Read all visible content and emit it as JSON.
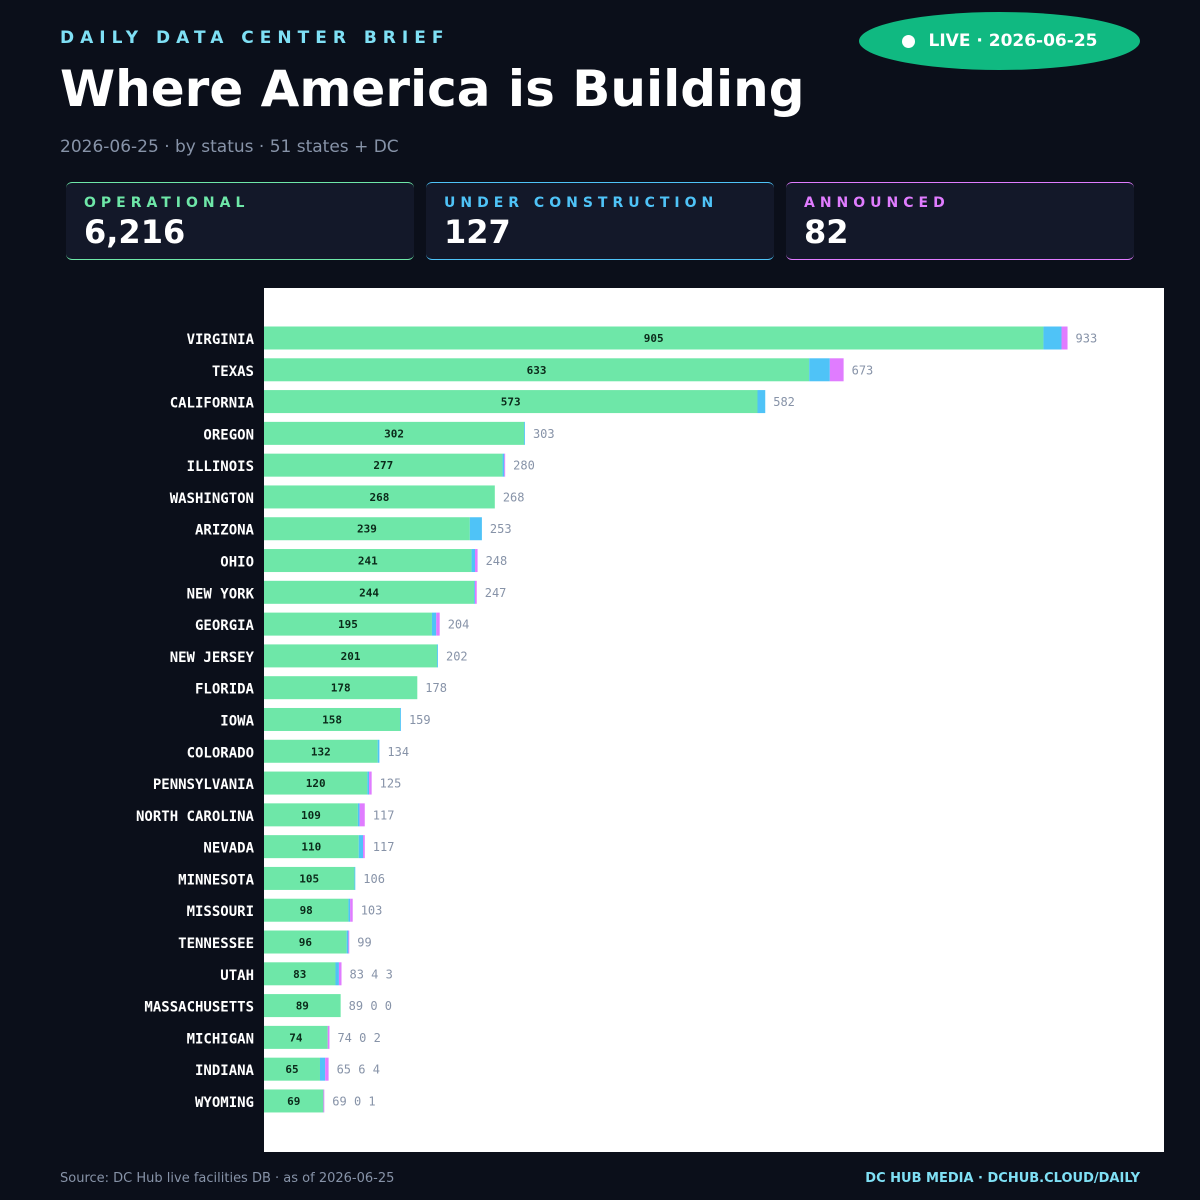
{
  "header": {
    "kicker": "DAILY DATA CENTER BRIEF",
    "title": "Where America is Building",
    "subtitle": "2026-06-25 · by status · 51 states + DC",
    "live": "LIVE · 2026-06-25"
  },
  "kpis": [
    {
      "label": "OPERATIONAL",
      "value": "6,216",
      "color": "#6ee7a8"
    },
    {
      "label": "UNDER CONSTRUCTION",
      "value": "127",
      "color": "#4fc3f7"
    },
    {
      "label": "ANNOUNCED",
      "value": "82",
      "color": "#e07cff"
    }
  ],
  "chart_data": {
    "type": "stacked-barh",
    "categories": [
      "VIRGINIA",
      "TEXAS",
      "CALIFORNIA",
      "OREGON",
      "ILLINOIS",
      "WASHINGTON",
      "ARIZONA",
      "OHIO",
      "NEW YORK",
      "GEORGIA",
      "NEW JERSEY",
      "FLORIDA",
      "IOWA",
      "COLORADO",
      "PENNSYLVANIA",
      "NORTH CAROLINA",
      "NEVADA",
      "MINNESOTA",
      "MISSOURI",
      "TENNESSEE",
      "UTAH",
      "MASSACHUSETTS",
      "MICHIGAN",
      "INDIANA",
      "WYOMING"
    ],
    "series": [
      {
        "name": "Operational",
        "color": "#6ee7a8",
        "values": [
          905,
          633,
          573,
          302,
          277,
          268,
          239,
          241,
          244,
          195,
          201,
          178,
          158,
          132,
          120,
          109,
          110,
          105,
          98,
          96,
          83,
          89,
          74,
          65,
          69
        ]
      },
      {
        "name": "Under construction",
        "color": "#4fc3f7",
        "values": [
          21,
          24,
          9,
          1,
          2,
          0,
          14,
          4,
          1,
          5,
          1,
          0,
          1,
          2,
          2,
          2,
          5,
          1,
          2,
          2,
          4,
          0,
          0,
          6,
          0
        ]
      },
      {
        "name": "Announced",
        "color": "#e07cff",
        "values": [
          7,
          16,
          0,
          0,
          1,
          0,
          0,
          3,
          2,
          4,
          0,
          0,
          0,
          0,
          3,
          6,
          2,
          0,
          3,
          1,
          3,
          0,
          2,
          4,
          1
        ]
      }
    ],
    "total_labels": [
      "933",
      "673",
      "582",
      "303",
      "280",
      "268",
      "253",
      "248",
      "247",
      "204",
      "202",
      "178",
      "159",
      "134",
      "125",
      "117",
      "117",
      "106",
      "103",
      "99",
      "83 4 3",
      "89 0 0",
      "74 0 2",
      "65 6 4",
      "69 0 1"
    ],
    "xlim": [
      0,
      1045
    ]
  },
  "footer": {
    "source": "Source: DC Hub live facilities DB · as of 2026-06-25",
    "brand": "DC HUB MEDIA · DCHUB.CLOUD/DAILY"
  }
}
